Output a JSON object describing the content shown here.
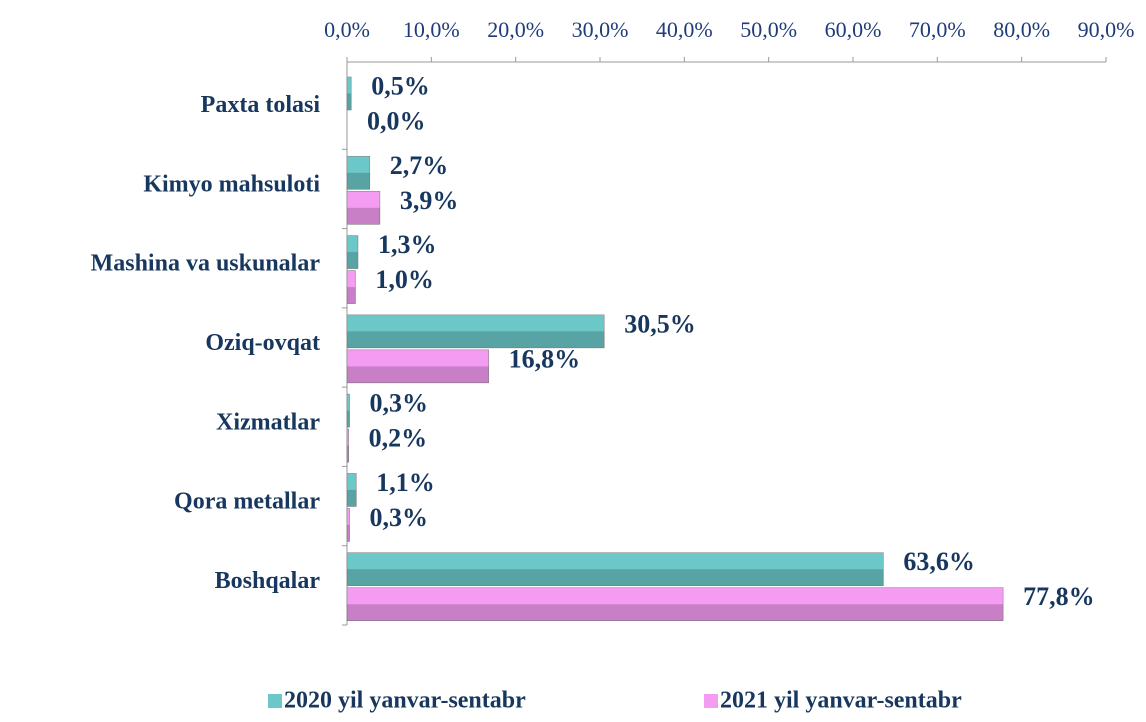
{
  "chart_data": {
    "type": "bar",
    "orientation": "horizontal",
    "categories": [
      "Paxta tolasi",
      "Kimyo mahsuloti",
      "Mashina va uskunalar",
      "Oziq-ovqat",
      "Xizmatlar",
      "Qora  metallar",
      "Boshqalar"
    ],
    "series": [
      {
        "name": "2020 yil yanvar-sentabr",
        "color": "#6cc8c8",
        "values": [
          0.5,
          2.7,
          1.3,
          30.5,
          0.3,
          1.1,
          63.6
        ],
        "value_labels": [
          "0,5%",
          "2,7%",
          "1,3%",
          "30,5%",
          "0,3%",
          "1,1%",
          "63,6%"
        ]
      },
      {
        "name": "2021 yil yanvar-sentabr",
        "color": "#f49cf2",
        "values": [
          0.0,
          3.9,
          1.0,
          16.8,
          0.2,
          0.3,
          77.8
        ],
        "value_labels": [
          "0,0%",
          "3,9%",
          "1,0%",
          "16,8%",
          "0,2%",
          "0,3%",
          "77,8%"
        ]
      }
    ],
    "xlim": [
      0,
      90
    ],
    "xticks": [
      {
        "value": 0,
        "label": "0,0%"
      },
      {
        "value": 10,
        "label": "10,0%"
      },
      {
        "value": 20,
        "label": "20,0%"
      },
      {
        "value": 30,
        "label": "30,0%"
      },
      {
        "value": 40,
        "label": "40,0%"
      },
      {
        "value": 50,
        "label": "50,0%"
      },
      {
        "value": 60,
        "label": "60,0%"
      },
      {
        "value": 70,
        "label": "70,0%"
      },
      {
        "value": 80,
        "label": "80,0%"
      },
      {
        "value": 90,
        "label": "90,0%"
      }
    ],
    "legend": "bottom"
  }
}
